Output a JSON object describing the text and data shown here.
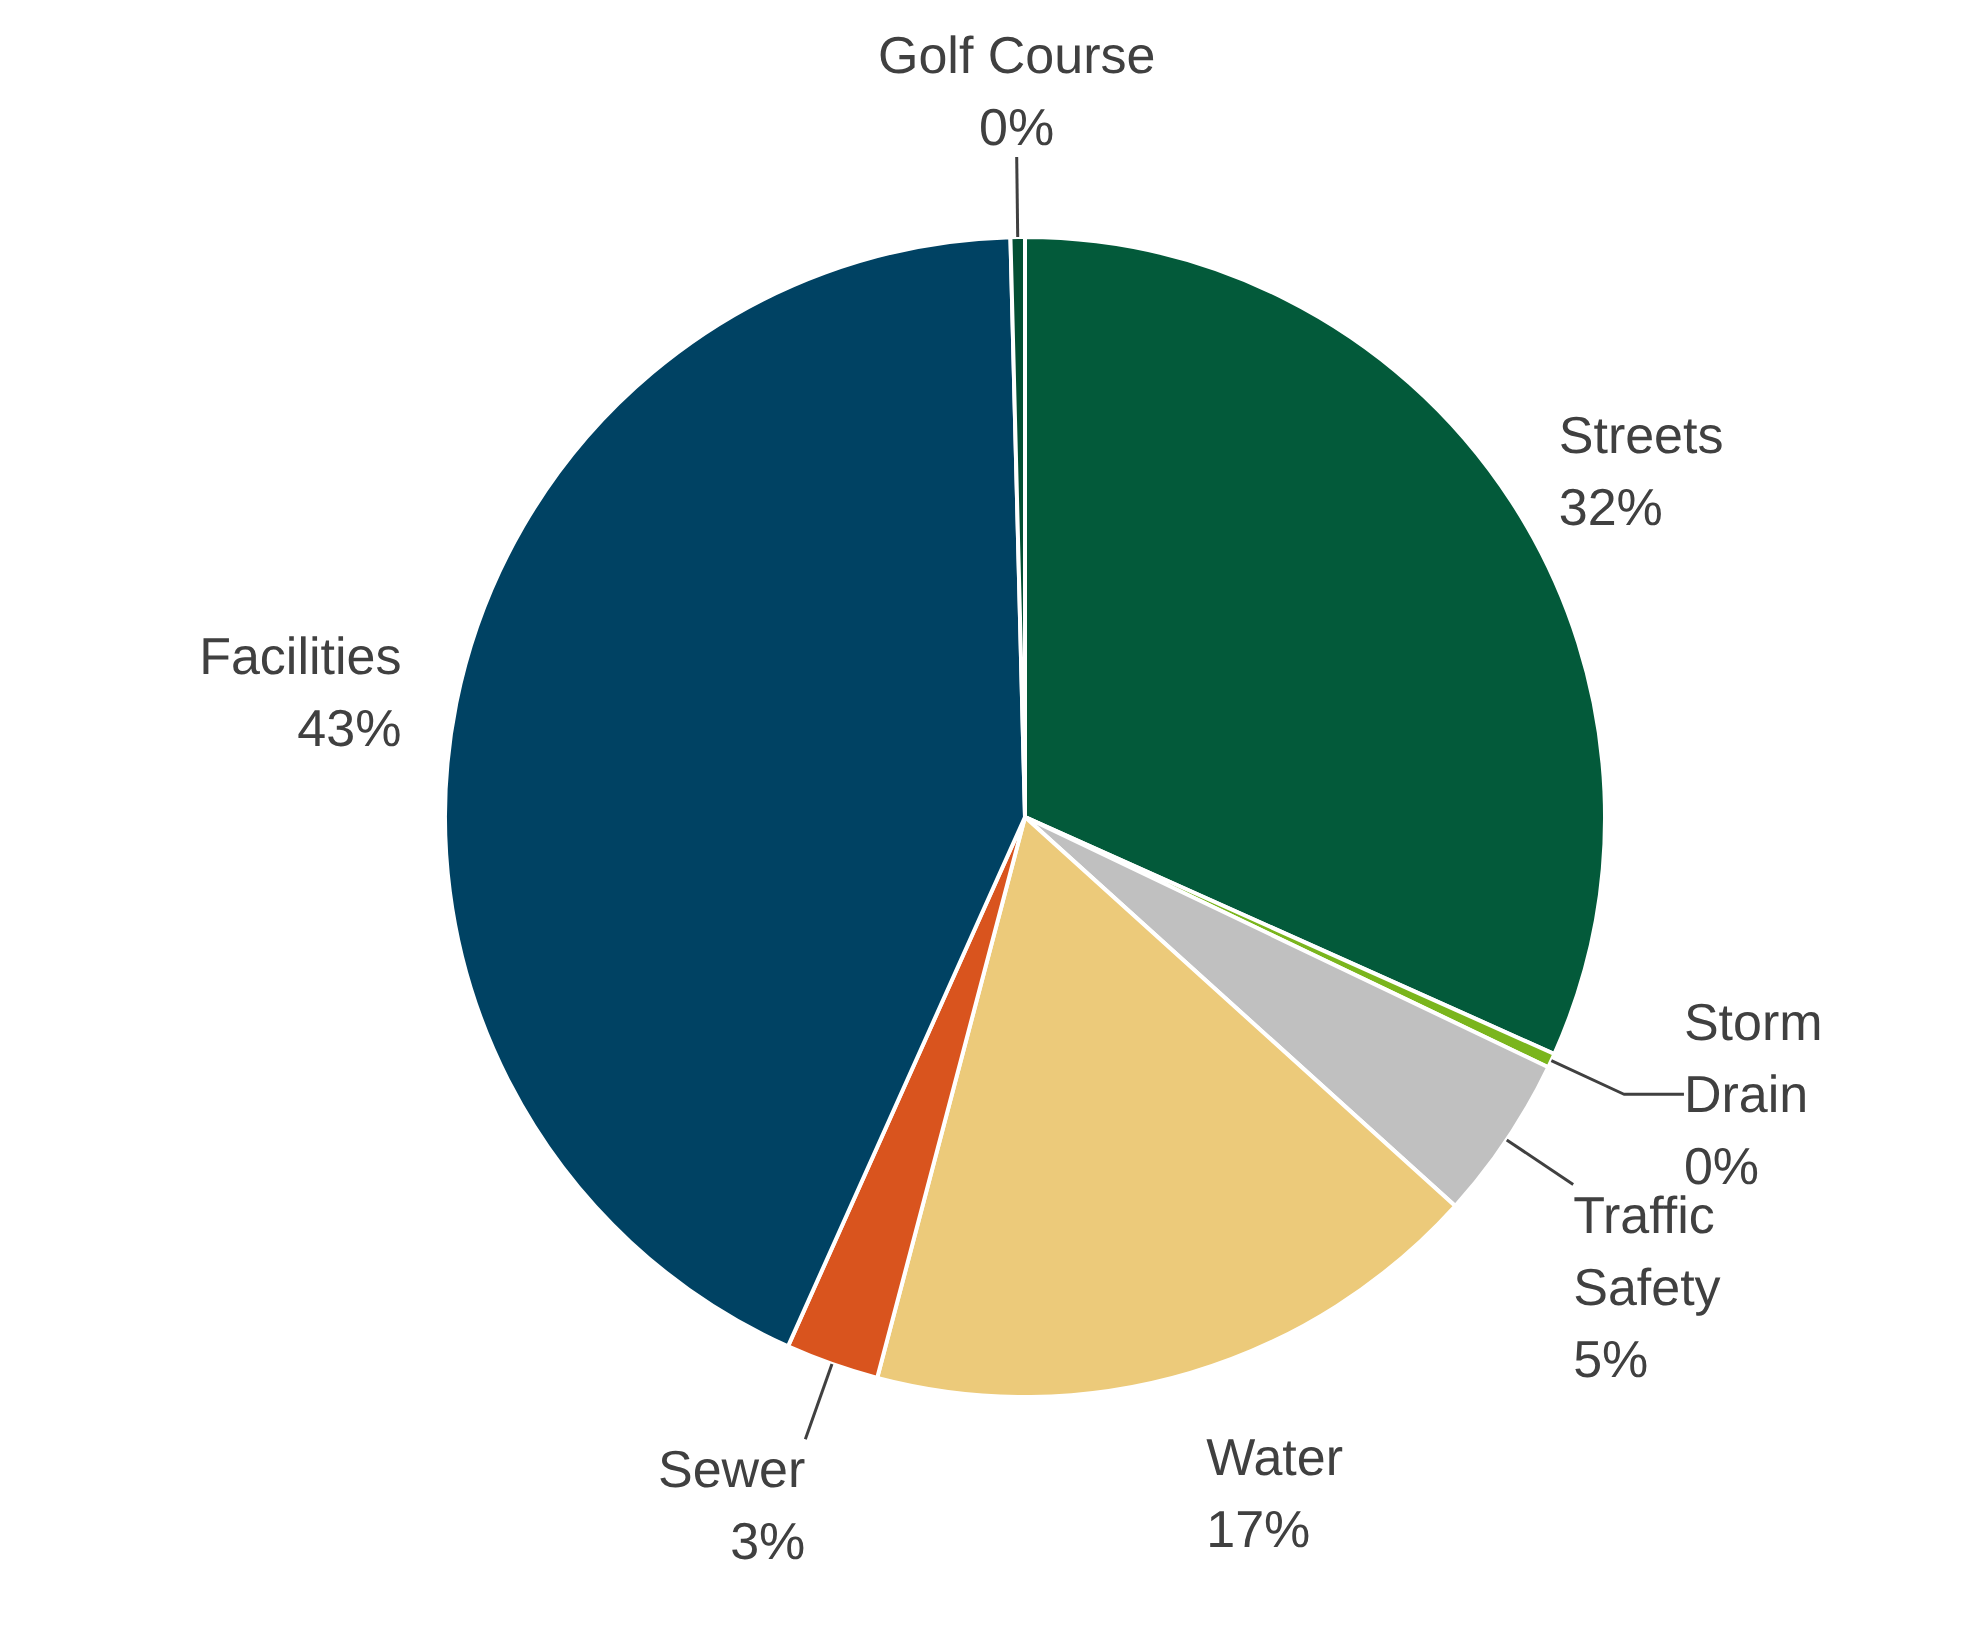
{
  "chart_data": {
    "type": "pie",
    "categories": [
      "Streets",
      "Storm Drain",
      "Traffic Safety",
      "Water",
      "Sewer",
      "Facilities",
      "Golf Course"
    ],
    "values": [
      31.7,
      0.4,
      4.6,
      17.4,
      2.6,
      42.9,
      0.4
    ],
    "value_labels": [
      "32%",
      "0%",
      "5%",
      "17%",
      "3%",
      "43%",
      "0%"
    ],
    "colors": [
      "#035a3a",
      "#7ab51d",
      "#c0c0c0",
      "#ecca7a",
      "#d9541e",
      "#004263",
      "#034f33"
    ]
  }
}
